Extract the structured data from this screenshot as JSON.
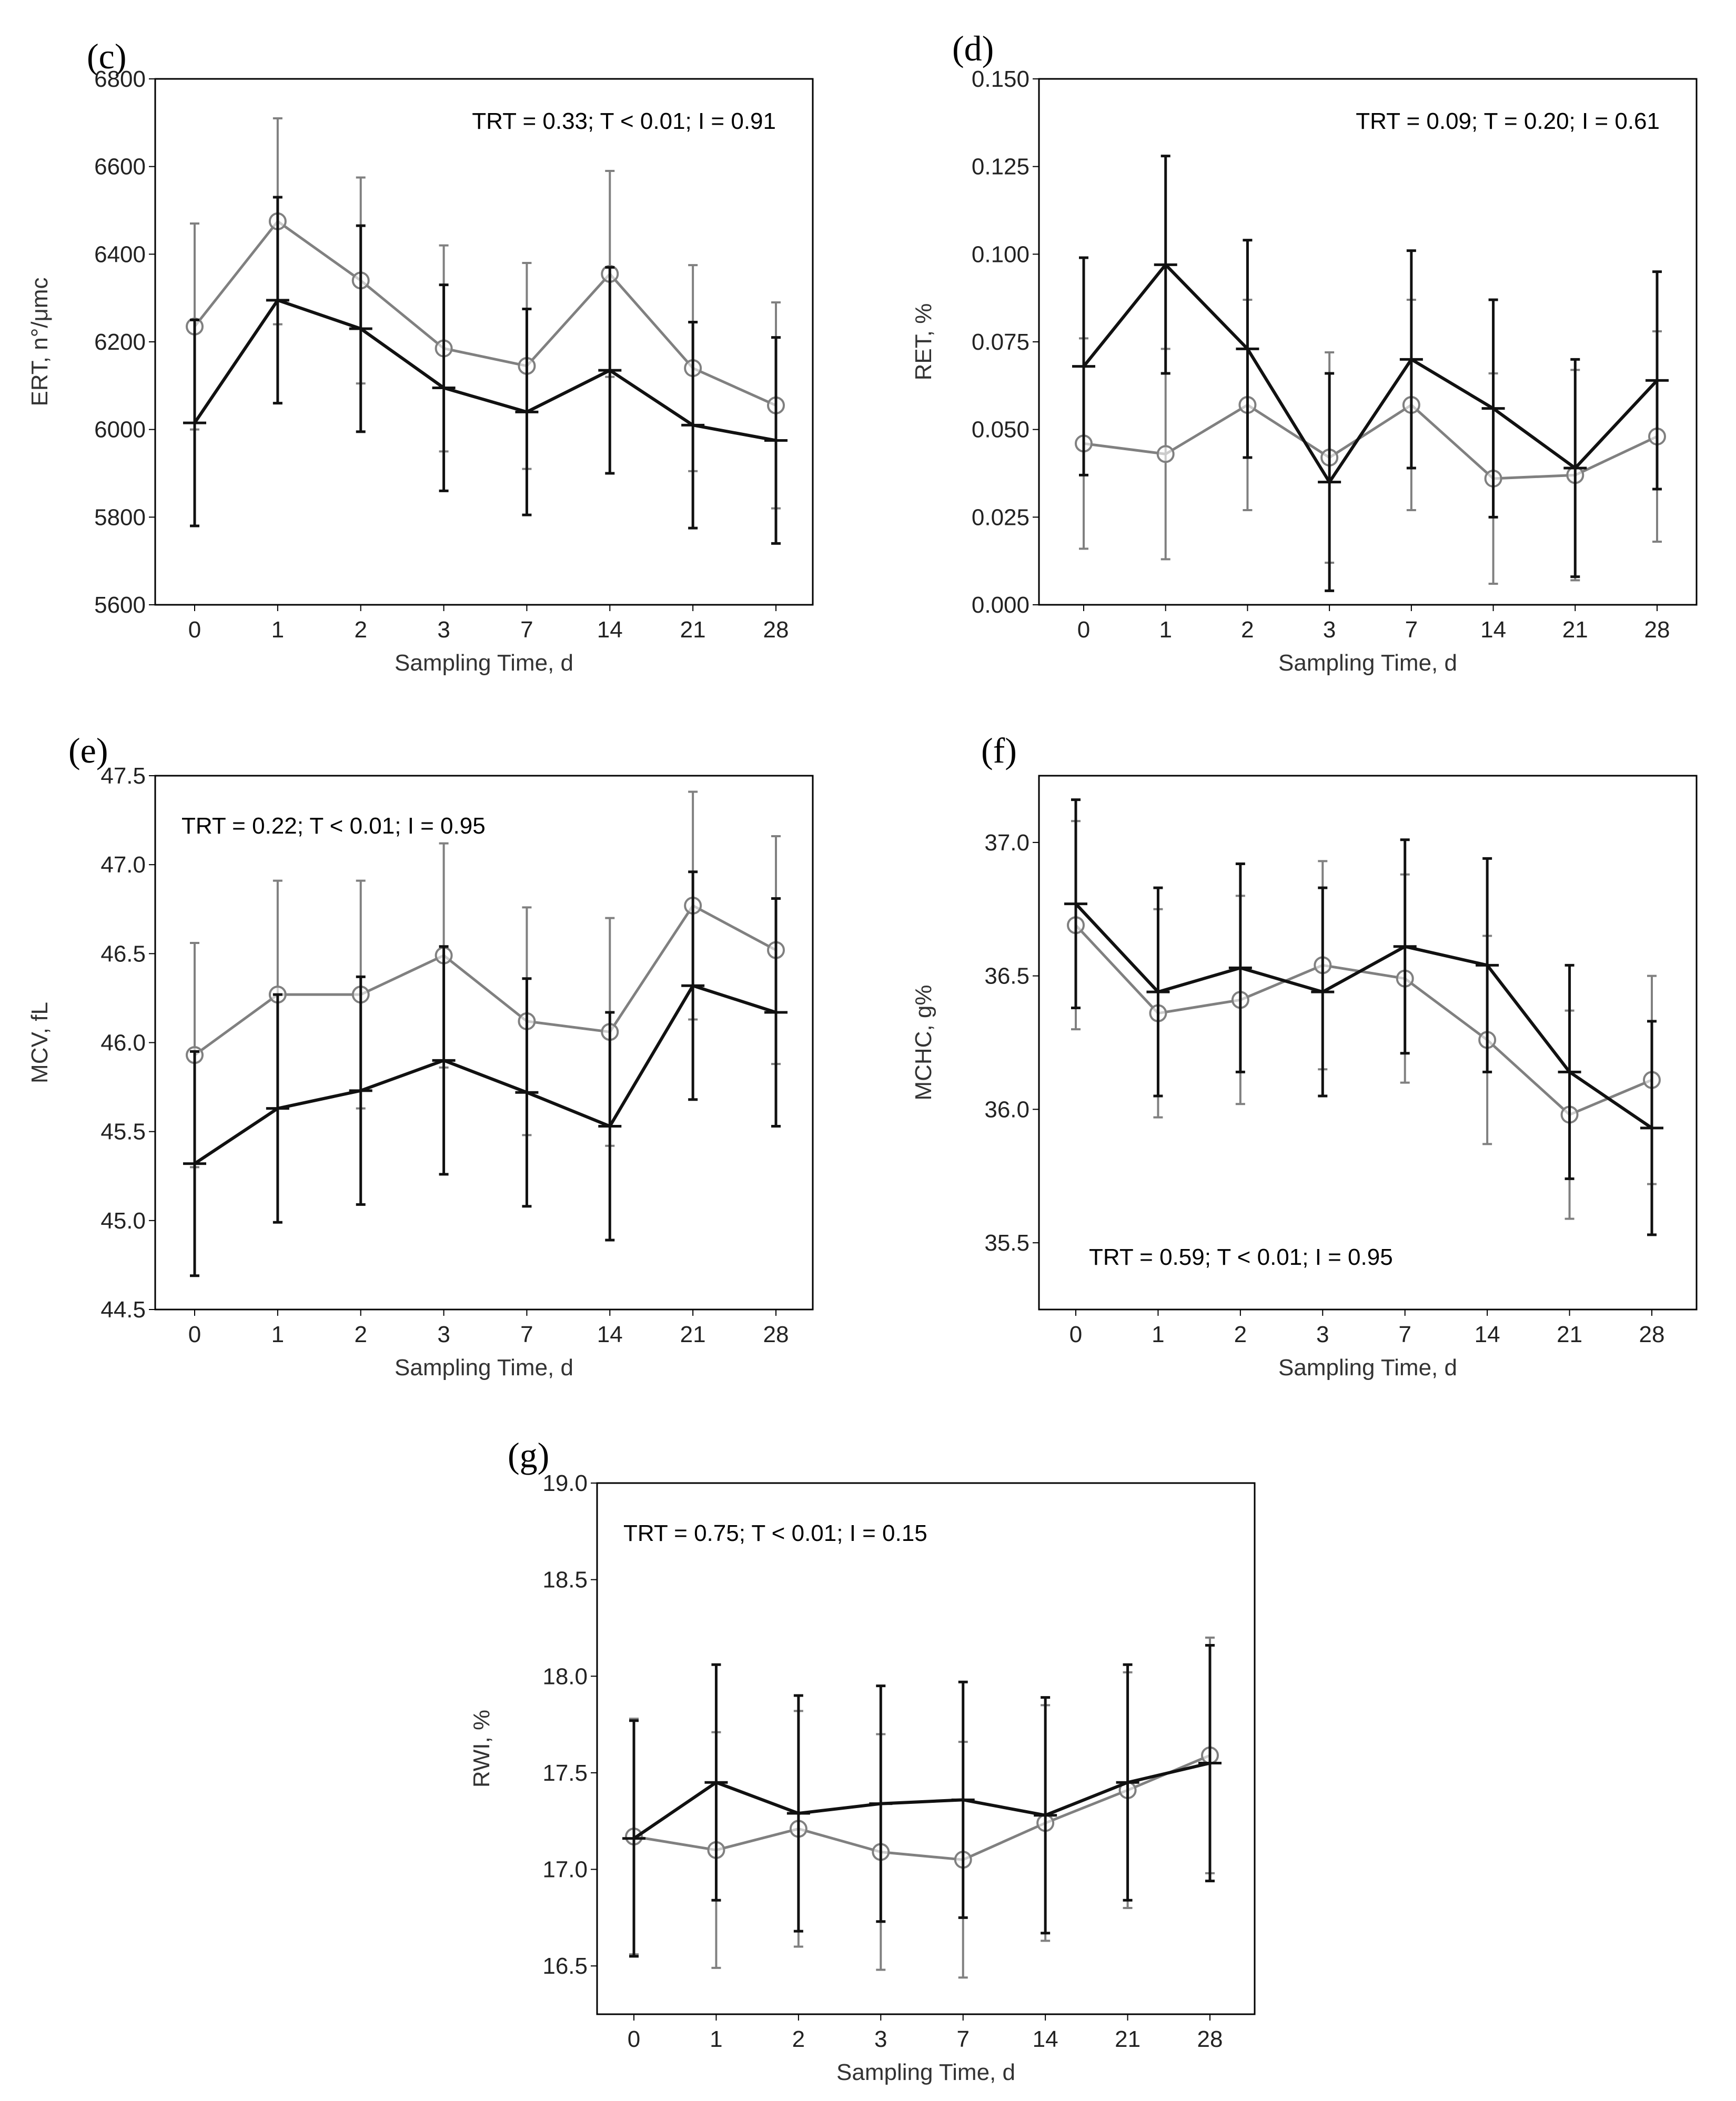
{
  "colors": {
    "series_black": "#111111",
    "series_gray": "#808080",
    "frame": "#000000"
  },
  "chart_data": [
    {
      "panel": "(c)",
      "type": "line",
      "categories": [
        "0",
        "1",
        "2",
        "3",
        "7",
        "14",
        "21",
        "28"
      ],
      "xlabel": "Sampling Time, d",
      "ylabel": "ERT, n°/μmc",
      "ylim": [
        5600,
        6800
      ],
      "yticks": [
        "5600",
        "5800",
        "6000",
        "6200",
        "6400",
        "6600",
        "6800"
      ],
      "annotation": "TRT = 0.33; T < 0.01; I = 0.91",
      "annotation_pos": "top-right",
      "series": [
        {
          "name": "gray",
          "marker": "circle",
          "values": [
            6235,
            6475,
            6340,
            6185,
            6145,
            6355,
            6140,
            6055
          ],
          "err": [
            235,
            235,
            235,
            235,
            235,
            235,
            235,
            235
          ]
        },
        {
          "name": "black",
          "marker": "tick",
          "values": [
            6015,
            6295,
            6230,
            6095,
            6040,
            6135,
            6010,
            5975
          ],
          "err": [
            235,
            235,
            235,
            235,
            235,
            235,
            235,
            235
          ]
        }
      ]
    },
    {
      "panel": "(d)",
      "type": "line",
      "categories": [
        "0",
        "1",
        "2",
        "3",
        "7",
        "14",
        "21",
        "28"
      ],
      "xlabel": "Sampling Time, d",
      "ylabel": "RET, %",
      "ylim": [
        0,
        0.15
      ],
      "yticks": [
        "0.000",
        "0.025",
        "0.050",
        "0.075",
        "0.100",
        "0.125",
        "0.150"
      ],
      "annotation": "TRT = 0.09; T = 0.20; I = 0.61",
      "annotation_pos": "top-right",
      "series": [
        {
          "name": "gray",
          "marker": "circle",
          "values": [
            0.046,
            0.043,
            0.057,
            0.042,
            0.057,
            0.036,
            0.037,
            0.048
          ],
          "err": [
            0.03,
            0.03,
            0.03,
            0.03,
            0.03,
            0.03,
            0.03,
            0.03
          ]
        },
        {
          "name": "black",
          "marker": "tick",
          "values": [
            0.068,
            0.097,
            0.073,
            0.035,
            0.07,
            0.056,
            0.039,
            0.064
          ],
          "err": [
            0.031,
            0.031,
            0.031,
            0.031,
            0.031,
            0.031,
            0.031,
            0.031
          ]
        }
      ]
    },
    {
      "panel": "(e)",
      "type": "line",
      "categories": [
        "0",
        "1",
        "2",
        "3",
        "7",
        "14",
        "21",
        "28"
      ],
      "xlabel": "Sampling Time, d",
      "ylabel": "MCV, fL",
      "ylim": [
        44.5,
        47.5
      ],
      "yticks": [
        "44.5",
        "45.0",
        "45.5",
        "46.0",
        "46.5",
        "47.0",
        "47.5"
      ],
      "annotation": "TRT = 0.22; T < 0.01; I = 0.95",
      "annotation_pos": "top-left",
      "series": [
        {
          "name": "gray",
          "marker": "circle",
          "values": [
            45.93,
            46.27,
            46.27,
            46.49,
            46.12,
            46.06,
            46.77,
            46.52
          ],
          "err": [
            0.63,
            0.64,
            0.64,
            0.63,
            0.64,
            0.64,
            0.64,
            0.64
          ]
        },
        {
          "name": "black",
          "marker": "tick",
          "values": [
            45.32,
            45.63,
            45.73,
            45.9,
            45.72,
            45.53,
            46.32,
            46.17
          ],
          "err": [
            0.63,
            0.64,
            0.64,
            0.64,
            0.64,
            0.64,
            0.64,
            0.64
          ]
        }
      ]
    },
    {
      "panel": "(f)",
      "type": "line",
      "categories": [
        "0",
        "1",
        "2",
        "3",
        "7",
        "14",
        "21",
        "28"
      ],
      "xlabel": "Sampling Time, d",
      "ylabel": "MCHC, g%",
      "ylim": [
        35.25,
        37.25
      ],
      "yticks": [
        "35.5",
        "36.0",
        "36.5",
        "37.0"
      ],
      "annotation": "TRT = 0.59; T < 0.01; I = 0.95",
      "annotation_pos": "bottom-left",
      "series": [
        {
          "name": "gray",
          "marker": "circle",
          "values": [
            36.69,
            36.36,
            36.41,
            36.54,
            36.49,
            36.26,
            35.98,
            36.11
          ],
          "err": [
            0.39,
            0.39,
            0.39,
            0.39,
            0.39,
            0.39,
            0.39,
            0.39
          ]
        },
        {
          "name": "black",
          "marker": "tick",
          "values": [
            36.77,
            36.44,
            36.53,
            36.44,
            36.61,
            36.54,
            36.14,
            35.93
          ],
          "err": [
            0.39,
            0.39,
            0.39,
            0.39,
            0.4,
            0.4,
            0.4,
            0.4
          ]
        }
      ]
    },
    {
      "panel": "(g)",
      "type": "line",
      "categories": [
        "0",
        "1",
        "2",
        "3",
        "7",
        "14",
        "21",
        "28"
      ],
      "xlabel": "Sampling Time, d",
      "ylabel": "RWI, %",
      "ylim": [
        16.25,
        19.0
      ],
      "yticks": [
        "16.5",
        "17.0",
        "17.5",
        "18.0",
        "18.5",
        "19.0"
      ],
      "annotation": "TRT = 0.75; T < 0.01; I = 0.15",
      "annotation_pos": "top-left",
      "series": [
        {
          "name": "gray",
          "marker": "circle",
          "values": [
            17.17,
            17.1,
            17.21,
            17.09,
            17.05,
            17.24,
            17.41,
            17.59
          ],
          "err": [
            0.61,
            0.61,
            0.61,
            0.61,
            0.61,
            0.61,
            0.61,
            0.61
          ]
        },
        {
          "name": "black",
          "marker": "tick",
          "values": [
            17.16,
            17.45,
            17.29,
            17.34,
            17.36,
            17.28,
            17.45,
            17.55
          ],
          "err": [
            0.61,
            0.61,
            0.61,
            0.61,
            0.61,
            0.61,
            0.61,
            0.61
          ]
        }
      ]
    }
  ]
}
